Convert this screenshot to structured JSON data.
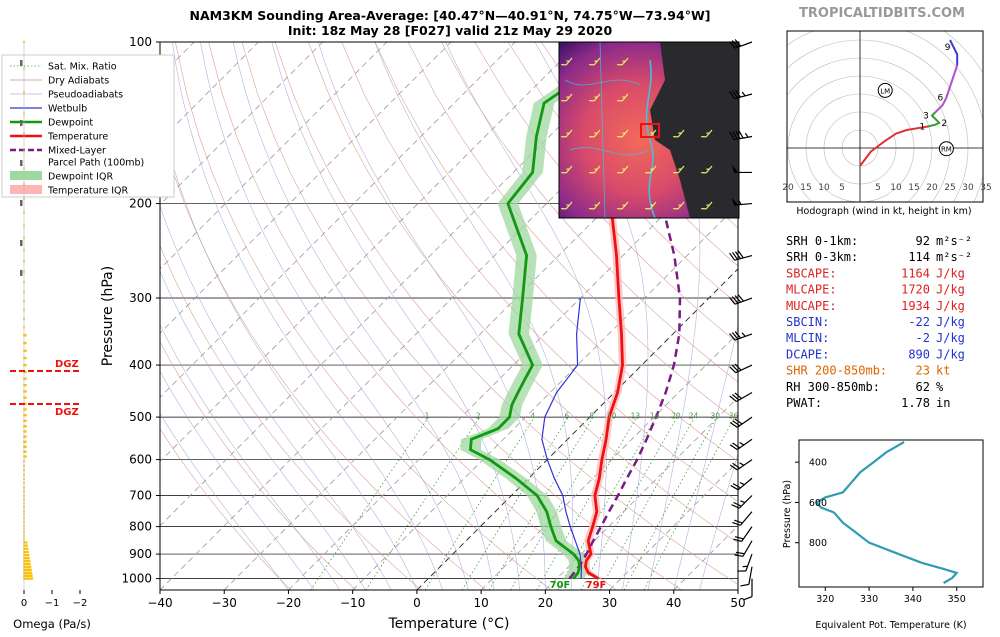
{
  "header": {
    "title": "NAM3KM Sounding Area-Average: [40.47°N—40.91°N, 74.75°W—73.94°W]",
    "subtitle": "Init: 18z May 28 [F027] valid 21z May 29 2020",
    "brand": "TROPICALTIDBITS.COM"
  },
  "colors": {
    "temperature": "#ee1111",
    "dewpoint": "#119911",
    "wetbulb": "#3333dd",
    "parcel": "#7a1a85",
    "dewpoint_iqr": "#9fd89f",
    "temperature_iqr": "#ffb5b5",
    "dry_adiabat": "#d58a8a",
    "pseudoadiabat": "#9a9ad8",
    "mixing_ratio": "#4a9a4a",
    "isotherm": "#888888",
    "omega": "#ffc107",
    "dgz": "#ee1111",
    "theta_e": "#2f9bb5",
    "hodo_low": "#e03030",
    "hodo_mid": "#2e9e2e",
    "hodo_upper": "#b050c8",
    "hodo_top": "#3a3ae0"
  },
  "legend": {
    "items": [
      {
        "label": "Sat. Mix. Ratio",
        "style": "dotted",
        "color": "#4a9a4a"
      },
      {
        "label": "Dry Adiabats",
        "style": "thin",
        "color": "#d58a8a"
      },
      {
        "label": "Pseudoadiabats",
        "style": "thin",
        "color": "#b0b0d8"
      },
      {
        "label": "Wetbulb",
        "style": "line",
        "color": "#3333dd"
      },
      {
        "label": "Dewpoint",
        "style": "thick",
        "color": "#119911"
      },
      {
        "label": "Temperature",
        "style": "thick",
        "color": "#ee1111"
      },
      {
        "label": "Mixed-Layer",
        "label2": "Parcel Path (100mb)",
        "style": "dashed",
        "color": "#7a1a85"
      },
      {
        "label": "Dewpoint IQR",
        "style": "patch",
        "color": "#9fd89f"
      },
      {
        "label": "Temperature IQR",
        "style": "patch",
        "color": "#ffb5b5"
      }
    ]
  },
  "chart_data": [
    {
      "type": "line",
      "title": "Skew-T",
      "xlabel": "Temperature (°C)",
      "ylabel": "Pressure (hPa)",
      "xlim": [
        -40,
        50
      ],
      "x_ticks": [
        "−40",
        "−30",
        "−20",
        "−10",
        "0",
        "10",
        "20",
        "30",
        "40",
        "50"
      ],
      "y_ticks": [
        "100",
        "200",
        "300",
        "400",
        "500",
        "600",
        "700",
        "800",
        "900",
        "1000"
      ],
      "mixing_ratio_labels": [
        "1",
        "2",
        "4",
        "6",
        "8",
        "10",
        "13",
        "16",
        "20",
        "24",
        "30",
        "36"
      ],
      "surface_labels": {
        "dewpoint": "70F",
        "temperature": "79F"
      },
      "series": [
        {
          "name": "Temperature",
          "points": [
            [
              1000,
              26.5
            ],
            [
              975,
              24
            ],
            [
              950,
              22.6
            ],
            [
              925,
              21.8
            ],
            [
              900,
              21.5
            ],
            [
              850,
              19
            ],
            [
              800,
              17.5
            ],
            [
              750,
              15.8
            ],
            [
              700,
              13
            ],
            [
              650,
              11
            ],
            [
              600,
              8.5
            ],
            [
              550,
              6
            ],
            [
              500,
              3
            ],
            [
              450,
              0.5
            ],
            [
              400,
              -3
            ],
            [
              350,
              -8
            ],
            [
              300,
              -14
            ],
            [
              250,
              -21
            ],
            [
              200,
              -30
            ],
            [
              175,
              -35
            ],
            [
              150,
              -42
            ],
            [
              130,
              -42
            ],
            [
              120,
              -36
            ],
            [
              110,
              -27
            ],
            [
              100,
              -23
            ]
          ]
        },
        {
          "name": "Dewpoint",
          "points": [
            [
              1000,
              22.6
            ],
            [
              975,
              22.4
            ],
            [
              950,
              21.7
            ],
            [
              925,
              20.6
            ],
            [
              900,
              18.8
            ],
            [
              850,
              14
            ],
            [
              800,
              11
            ],
            [
              750,
              8
            ],
            [
              700,
              4
            ],
            [
              650,
              -2
            ],
            [
              600,
              -9
            ],
            [
              575,
              -13.5
            ],
            [
              550,
              -15
            ],
            [
              525,
              -12.5
            ],
            [
              500,
              -12.5
            ],
            [
              475,
              -14
            ],
            [
              450,
              -15
            ],
            [
              425,
              -16
            ],
            [
              400,
              -17
            ],
            [
              350,
              -24
            ],
            [
              300,
              -29
            ],
            [
              250,
              -35
            ],
            [
              200,
              -46
            ],
            [
              175,
              -47
            ],
            [
              150,
              -52
            ],
            [
              130,
              -56
            ],
            [
              115,
              -54
            ],
            [
              100,
              -57
            ]
          ]
        },
        {
          "name": "Wetbulb",
          "points": [
            [
              1000,
              23.8
            ],
            [
              950,
              22
            ],
            [
              900,
              19.8
            ],
            [
              850,
              17
            ],
            [
              800,
              14
            ],
            [
              750,
              11
            ],
            [
              700,
              8
            ],
            [
              650,
              4
            ],
            [
              600,
              0
            ],
            [
              550,
              -4
            ],
            [
              500,
              -7
            ],
            [
              450,
              -9
            ],
            [
              400,
              -10
            ],
            [
              350,
              -15
            ],
            [
              300,
              -20
            ]
          ]
        },
        {
          "name": "Mixed-Layer Parcel Path (100mb)",
          "points": [
            [
              1000,
              22
            ],
            [
              950,
              21.6
            ],
            [
              900,
              20.8
            ],
            [
              850,
              19.8
            ],
            [
              800,
              18.8
            ],
            [
              750,
              17.7
            ],
            [
              700,
              16.6
            ],
            [
              650,
              15.3
            ],
            [
              600,
              14
            ],
            [
              550,
              12.3
            ],
            [
              500,
              10.3
            ],
            [
              450,
              8
            ],
            [
              400,
              5
            ],
            [
              350,
              1
            ],
            [
              300,
              -4.5
            ],
            [
              250,
              -12
            ],
            [
              200,
              -22
            ],
            [
              150,
              -34
            ],
            [
              125,
              -42
            ],
            [
              100,
              -48
            ]
          ]
        }
      ]
    },
    {
      "type": "line",
      "title": "Hodograph (wind in kt, height in km)",
      "x_ticks": [
        "20",
        "15",
        "10",
        "5",
        "5",
        "10",
        "15",
        "20",
        "25",
        "30",
        "35"
      ],
      "height_labels": [
        "1",
        "2",
        "3",
        "6",
        "9"
      ],
      "markers": [
        "LM",
        "RM"
      ],
      "points": [
        [
          0,
          -5
        ],
        [
          3,
          -1
        ],
        [
          7,
          2
        ],
        [
          10,
          4
        ],
        [
          13,
          5
        ],
        [
          16,
          5.5
        ],
        [
          19,
          6
        ],
        [
          21,
          6.5
        ],
        [
          22,
          7
        ],
        [
          21,
          8
        ],
        [
          20,
          9
        ],
        [
          21,
          10
        ],
        [
          22,
          11
        ],
        [
          23,
          12
        ],
        [
          24,
          14
        ],
        [
          25,
          17
        ],
        [
          26,
          20
        ],
        [
          27,
          23
        ],
        [
          27,
          26
        ],
        [
          26,
          28
        ],
        [
          25,
          30
        ]
      ]
    },
    {
      "type": "line",
      "xlabel": "Equivalent Pot. Temperature (K)",
      "ylabel": "Pressure (hPa)",
      "x_ticks": [
        "320",
        "330",
        "340",
        "350"
      ],
      "y_ticks": [
        "400",
        "600",
        "800"
      ],
      "points": [
        [
          300,
          338
        ],
        [
          350,
          334
        ],
        [
          400,
          331
        ],
        [
          450,
          328
        ],
        [
          500,
          326
        ],
        [
          550,
          324
        ],
        [
          575,
          320
        ],
        [
          600,
          318
        ],
        [
          625,
          319
        ],
        [
          650,
          322
        ],
        [
          700,
          324
        ],
        [
          750,
          327
        ],
        [
          800,
          330
        ],
        [
          850,
          336
        ],
        [
          900,
          342
        ],
        [
          930,
          347
        ],
        [
          950,
          350
        ],
        [
          975,
          349
        ],
        [
          1000,
          347
        ]
      ]
    },
    {
      "type": "bar",
      "xlabel": "Omega (Pa/s)",
      "x_ticks": [
        "0",
        "−1",
        "−2"
      ],
      "dgz_labels": [
        "DGZ",
        "DGZ"
      ]
    }
  ],
  "params": [
    {
      "label": "SRH 0-1km:",
      "value": "92",
      "unit": "m²s⁻²",
      "color": "#000000"
    },
    {
      "label": "SRH 0-3km:",
      "value": "114",
      "unit": "m²s⁻²",
      "color": "#000000"
    },
    {
      "label": "SBCAPE:",
      "value": "1164",
      "unit": "J/kg",
      "color": "#dd2222"
    },
    {
      "label": "MLCAPE:",
      "value": "1720",
      "unit": "J/kg",
      "color": "#dd2222"
    },
    {
      "label": "MUCAPE:",
      "value": "1934",
      "unit": "J/kg",
      "color": "#dd2222"
    },
    {
      "label": "SBCIN:",
      "value": "-22",
      "unit": "J/kg",
      "color": "#2233cc"
    },
    {
      "label": "MLCIN:",
      "value": "-2",
      "unit": "J/kg",
      "color": "#2233cc"
    },
    {
      "label": "DCAPE:",
      "value": "890",
      "unit": "J/kg",
      "color": "#2233cc"
    },
    {
      "label": "SHR 200-850mb:",
      "value": "23",
      "unit": "kt",
      "color": "#dd6600"
    },
    {
      "label": "RH 300-850mb:",
      "value": "62",
      "unit": "%",
      "color": "#000000"
    },
    {
      "label": "PWAT:",
      "value": "1.78",
      "unit": "in",
      "color": "#000000"
    }
  ]
}
